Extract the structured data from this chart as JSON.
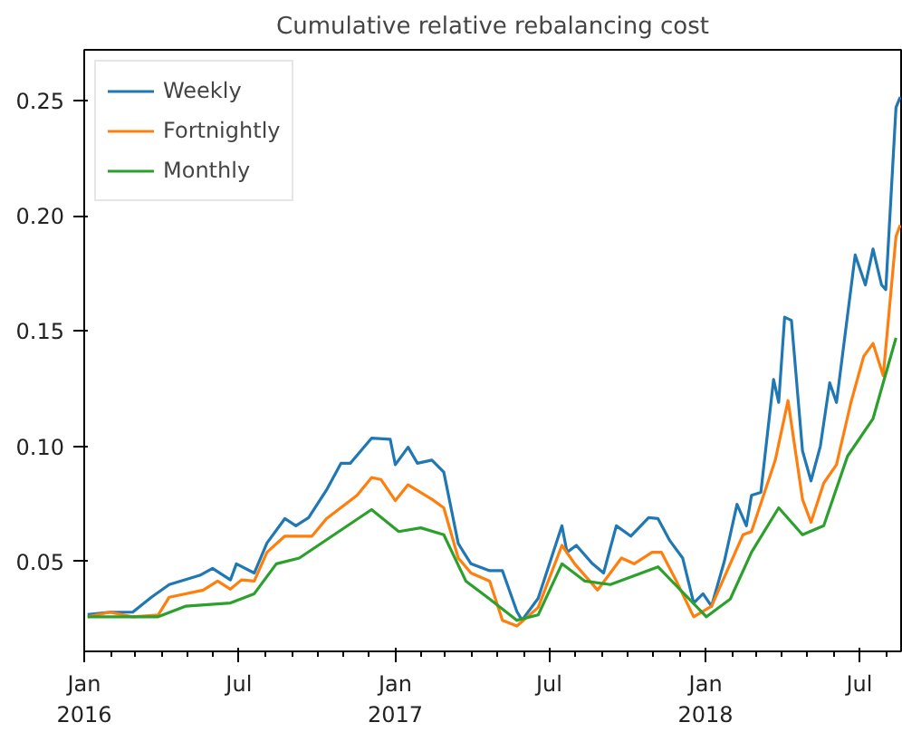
{
  "chart_data": {
    "type": "line",
    "title": "Cumulative relative rebalancing cost",
    "xlim": [
      "2016-01-01",
      "2018-08-19"
    ],
    "ylim": [
      0.011,
      0.272
    ],
    "xticks": [
      {
        "value": "2016-01-01",
        "label": "Jan\n2016"
      },
      {
        "value": "2016-02-01",
        "label": null
      },
      {
        "value": "2016-03-01",
        "label": null
      },
      {
        "value": "2016-04-01",
        "label": null
      },
      {
        "value": "2016-05-01",
        "label": null
      },
      {
        "value": "2016-06-01",
        "label": null
      },
      {
        "value": "2016-07-01",
        "label": "Jul"
      },
      {
        "value": "2016-08-01",
        "label": null
      },
      {
        "value": "2016-09-01",
        "label": null
      },
      {
        "value": "2016-10-01",
        "label": null
      },
      {
        "value": "2016-11-01",
        "label": null
      },
      {
        "value": "2016-12-01",
        "label": null
      },
      {
        "value": "2017-01-01",
        "label": "Jan\n2017"
      },
      {
        "value": "2017-02-01",
        "label": null
      },
      {
        "value": "2017-03-01",
        "label": null
      },
      {
        "value": "2017-04-01",
        "label": null
      },
      {
        "value": "2017-05-01",
        "label": null
      },
      {
        "value": "2017-06-01",
        "label": null
      },
      {
        "value": "2017-07-01",
        "label": "Jul"
      },
      {
        "value": "2017-08-01",
        "label": null
      },
      {
        "value": "2017-09-01",
        "label": null
      },
      {
        "value": "2017-10-01",
        "label": null
      },
      {
        "value": "2017-11-01",
        "label": null
      },
      {
        "value": "2017-12-01",
        "label": null
      },
      {
        "value": "2018-01-01",
        "label": "Jan\n2018"
      },
      {
        "value": "2018-02-01",
        "label": null
      },
      {
        "value": "2018-03-01",
        "label": null
      },
      {
        "value": "2018-04-01",
        "label": null
      },
      {
        "value": "2018-05-01",
        "label": null
      },
      {
        "value": "2018-06-01",
        "label": null
      },
      {
        "value": "2018-07-01",
        "label": "Jul"
      },
      {
        "value": "2018-08-01",
        "label": null
      }
    ],
    "yticks": [
      {
        "value": 0.05,
        "label": "0.05"
      },
      {
        "value": 0.1,
        "label": "0.10"
      },
      {
        "value": 0.15,
        "label": "0.15"
      },
      {
        "value": 0.2,
        "label": "0.20"
      },
      {
        "value": 0.25,
        "label": "0.25"
      }
    ],
    "grid": false,
    "legend": "top left",
    "marker": "none",
    "line_style": "solid",
    "series": [
      {
        "name": "Weekly",
        "color": "#1f77b4",
        "x": [
          "2016-01-05",
          "2016-01-31",
          "2016-02-27",
          "2016-03-20",
          "2016-04-10",
          "2016-05-16",
          "2016-05-31",
          "2016-06-21",
          "2016-06-28",
          "2016-07-19",
          "2016-08-03",
          "2016-08-24",
          "2016-09-06",
          "2016-09-21",
          "2016-10-12",
          "2016-10-29",
          "2016-11-09",
          "2016-12-04",
          "2016-12-26",
          "2017-01-01",
          "2017-01-16",
          "2017-01-27",
          "2017-02-13",
          "2017-02-27",
          "2017-03-16",
          "2017-03-31",
          "2017-04-22",
          "2017-05-07",
          "2017-05-24",
          "2017-05-30",
          "2017-06-18",
          "2017-07-16",
          "2017-07-22",
          "2017-08-02",
          "2017-08-21",
          "2017-09-03",
          "2017-09-18",
          "2017-10-05",
          "2017-10-26",
          "2017-11-06",
          "2017-11-20",
          "2017-12-05",
          "2017-12-18",
          "2017-12-29",
          "2018-01-08",
          "2018-01-23",
          "2018-02-07",
          "2018-02-18",
          "2018-02-24",
          "2018-03-07",
          "2018-03-22",
          "2018-03-28",
          "2018-04-04",
          "2018-04-12",
          "2018-04-25",
          "2018-05-05",
          "2018-05-16",
          "2018-05-27",
          "2018-06-04",
          "2018-06-26",
          "2018-07-08",
          "2018-07-17",
          "2018-07-27",
          "2018-08-01",
          "2018-08-13",
          "2018-08-18"
        ],
        "values": [
          0.027,
          0.028,
          0.028,
          0.0345,
          0.04,
          0.044,
          0.047,
          0.042,
          0.049,
          0.045,
          0.058,
          0.0686,
          0.0655,
          0.069,
          0.081,
          0.0926,
          0.0926,
          0.1035,
          0.103,
          0.092,
          0.0996,
          0.0926,
          0.094,
          0.0888,
          0.0578,
          0.049,
          0.046,
          0.046,
          0.0283,
          0.0245,
          0.034,
          0.0655,
          0.054,
          0.057,
          0.049,
          0.045,
          0.0655,
          0.061,
          0.069,
          0.0686,
          0.059,
          0.0515,
          0.032,
          0.036,
          0.0306,
          0.05,
          0.0748,
          0.0655,
          0.0787,
          0.08,
          0.129,
          0.119,
          0.156,
          0.1546,
          0.098,
          0.085,
          0.1,
          0.1275,
          0.119,
          0.183,
          0.17,
          0.1856,
          0.17,
          0.168,
          0.247,
          0.2515
        ]
      },
      {
        "name": "Fortnightly",
        "color": "#ff7f0e",
        "x": [
          "2016-01-05",
          "2016-01-31",
          "2016-02-27",
          "2016-03-28",
          "2016-04-10",
          "2016-05-20",
          "2016-06-06",
          "2016-06-21",
          "2016-07-04",
          "2016-07-19",
          "2016-08-03",
          "2016-08-24",
          "2016-09-25",
          "2016-10-12",
          "2016-11-17",
          "2016-12-04",
          "2016-12-15",
          "2017-01-01",
          "2017-01-16",
          "2017-02-13",
          "2017-02-27",
          "2017-03-16",
          "2017-03-31",
          "2017-04-22",
          "2017-05-07",
          "2017-05-24",
          "2017-06-18",
          "2017-07-16",
          "2017-07-31",
          "2017-08-27",
          "2017-09-24",
          "2017-10-09",
          "2017-10-30",
          "2017-11-10",
          "2017-11-27",
          "2017-12-18",
          "2018-01-08",
          "2018-02-14",
          "2018-02-24",
          "2018-03-24",
          "2018-04-08",
          "2018-04-25",
          "2018-05-05",
          "2018-05-20",
          "2018-06-04",
          "2018-06-21",
          "2018-07-06",
          "2018-07-17",
          "2018-07-29",
          "2018-08-13",
          "2018-08-18"
        ],
        "values": [
          0.026,
          0.028,
          0.026,
          0.0268,
          0.0345,
          0.0376,
          0.0415,
          0.038,
          0.042,
          0.0415,
          0.054,
          0.061,
          0.061,
          0.0686,
          0.0787,
          0.0864,
          0.0856,
          0.0764,
          0.0833,
          0.077,
          0.0733,
          0.0515,
          0.045,
          0.0415,
          0.0245,
          0.022,
          0.03,
          0.057,
          0.049,
          0.0376,
          0.0515,
          0.049,
          0.054,
          0.054,
          0.042,
          0.026,
          0.0306,
          0.0616,
          0.063,
          0.094,
          0.1198,
          0.077,
          0.067,
          0.084,
          0.092,
          0.119,
          0.139,
          0.1446,
          0.1306,
          0.191,
          0.196
        ]
      },
      {
        "name": "Monthly",
        "color": "#2ca02c",
        "x": [
          "2016-01-05",
          "2016-03-28",
          "2016-04-29",
          "2016-06-21",
          "2016-07-19",
          "2016-08-14",
          "2016-09-10",
          "2016-12-04",
          "2017-01-05",
          "2017-01-31",
          "2017-02-27",
          "2017-03-25",
          "2017-04-22",
          "2017-05-24",
          "2017-06-18",
          "2017-07-16",
          "2017-08-12",
          "2017-09-11",
          "2017-11-06",
          "2018-01-02",
          "2018-01-30",
          "2018-02-24",
          "2018-03-28",
          "2018-04-25",
          "2018-05-20",
          "2018-06-17",
          "2018-07-17",
          "2018-08-13"
        ],
        "values": [
          0.026,
          0.026,
          0.0306,
          0.032,
          0.036,
          0.049,
          0.0515,
          0.0725,
          0.063,
          0.0646,
          0.0616,
          0.0415,
          0.0337,
          0.0245,
          0.0268,
          0.049,
          0.0415,
          0.04,
          0.0477,
          0.026,
          0.0337,
          0.054,
          0.0733,
          0.0616,
          0.0655,
          0.0957,
          0.112,
          0.147
        ]
      }
    ]
  }
}
